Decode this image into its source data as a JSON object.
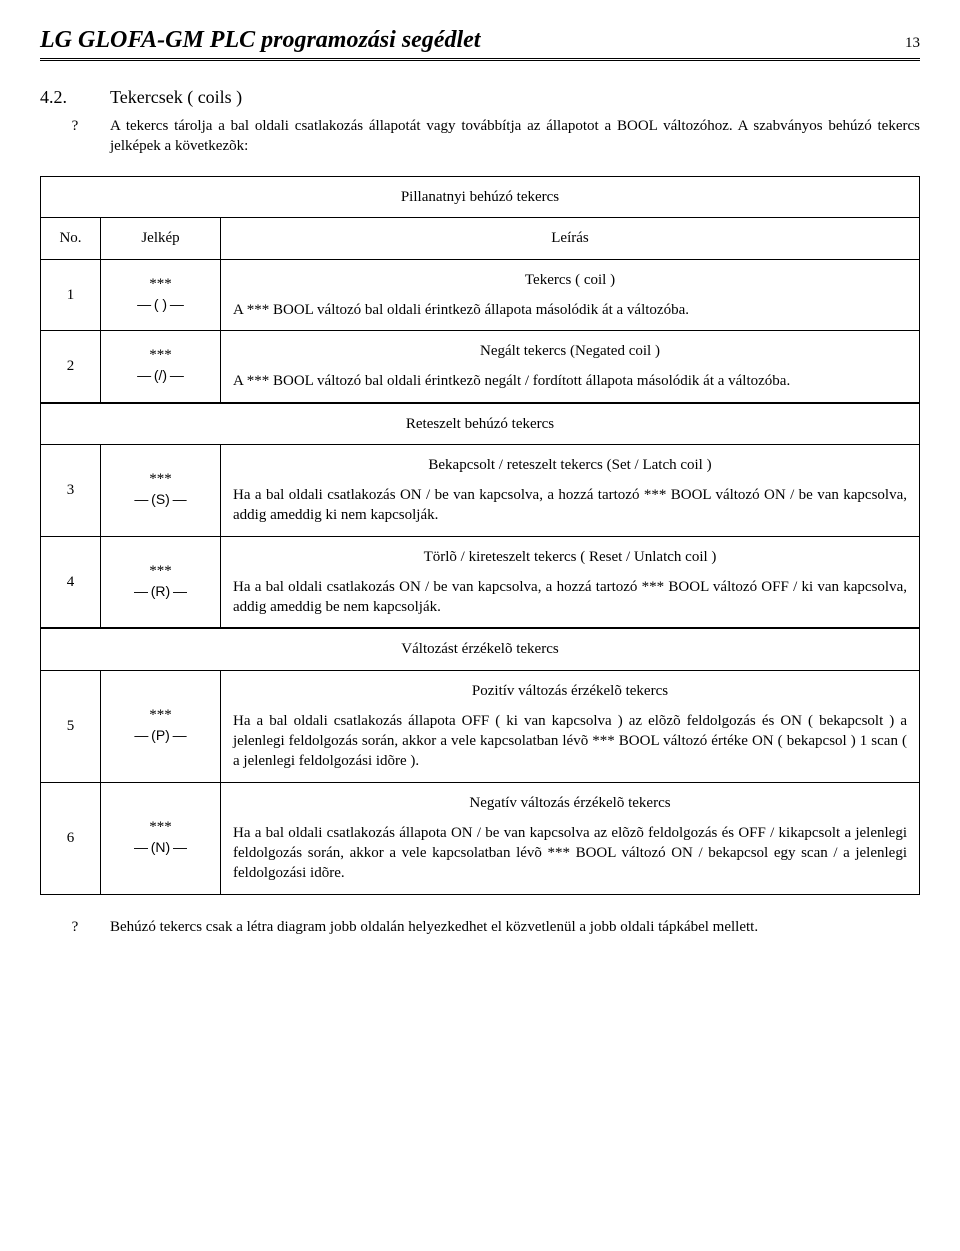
{
  "header": {
    "title": "LG GLOFA-GM PLC programozási segédlet",
    "page": "13"
  },
  "section": {
    "number": "4.2.",
    "title": "Tekercsek ( coils )",
    "qmark": "?",
    "intro": "A tekercs tárolja a bal oldali csatlakozás állapotát vagy továbbítja az állapotot a BOOL változóhoz. A szabványos behúzó tekercs jelképek a következõk:"
  },
  "table": {
    "banner1": "Pillanatnyi behúzó tekercs",
    "head_no": "No.",
    "head_sym": "Jelkép",
    "head_desc": "Leírás",
    "rows": [
      {
        "no": "1",
        "stars": "***",
        "coil": "— ( ) —",
        "title": "Tekercs ( coil )",
        "body": "A *** BOOL változó bal oldali érintkezõ állapota másolódik át  a változóba."
      },
      {
        "no": "2",
        "stars": "***",
        "coil": "— (/) —",
        "title": "Negált tekercs (Negated coil )",
        "body": "A *** BOOL változó bal oldali érintkezõ negált / fordított állapota másolódik át a változóba."
      }
    ],
    "banner2": "Reteszelt behúzó tekercs",
    "rows2": [
      {
        "no": "3",
        "stars": "***",
        "coil": "— (S) —",
        "title": "Bekapcsolt / reteszelt  tekercs (Set / Latch  coil )",
        "body": "Ha a bal oldali csatlakozás ON / be van kapcsolva, a hozzá tartozó *** BOOL változó  ON / be van kapcsolva, addig ameddig ki nem kapcsolják."
      },
      {
        "no": "4",
        "stars": "***",
        "coil": "— (R) —",
        "title": "Törlõ / kireteszelt  tekercs ( Reset / Unlatch coil )",
        "body": "Ha a bal oldali csatlakozás ON / be van kapcsolva, a hozzá tartozó *** BOOL változó OFF / ki van kapcsolva, addig ameddig be nem kapcsolják."
      }
    ],
    "banner3": "Változást érzékelõ tekercs",
    "rows3": [
      {
        "no": "5",
        "stars": "***",
        "coil": "— (P) —",
        "title": "Pozitív változás érzékelõ tekercs",
        "body": "Ha a bal oldali csatlakozás állapota OFF ( ki van kapcsolva ) az elõzõ feldolgozás és ON ( bekapcsolt ) a jelenlegi feldolgozás során, akkor a vele kapcsolatban lévõ ***  BOOL változó értéke ON ( bekapcsol ) 1 scan ( a jelenlegi feldolgozási idõre )."
      },
      {
        "no": "6",
        "stars": "***",
        "coil": "— (N) —",
        "title": "Negatív változás érzékelõ tekercs",
        "body": "Ha a bal oldali csatlakozás állapota ON / be van kapcsolva az elõzõ feldolgozás és OFF / kikapcsolt a jelenlegi feldolgozás során, akkor a vele kapcsolatban lévõ *** BOOL változó ON / bekapcsol egy scan / a jelenlegi feldolgozási idõre."
      }
    ]
  },
  "footer": {
    "qmark": "?",
    "text": "Behúzó tekercs csak a létra diagram jobb oldalán helyezkedhet el közvetlenül a jobb oldali tápkábel mellett."
  }
}
